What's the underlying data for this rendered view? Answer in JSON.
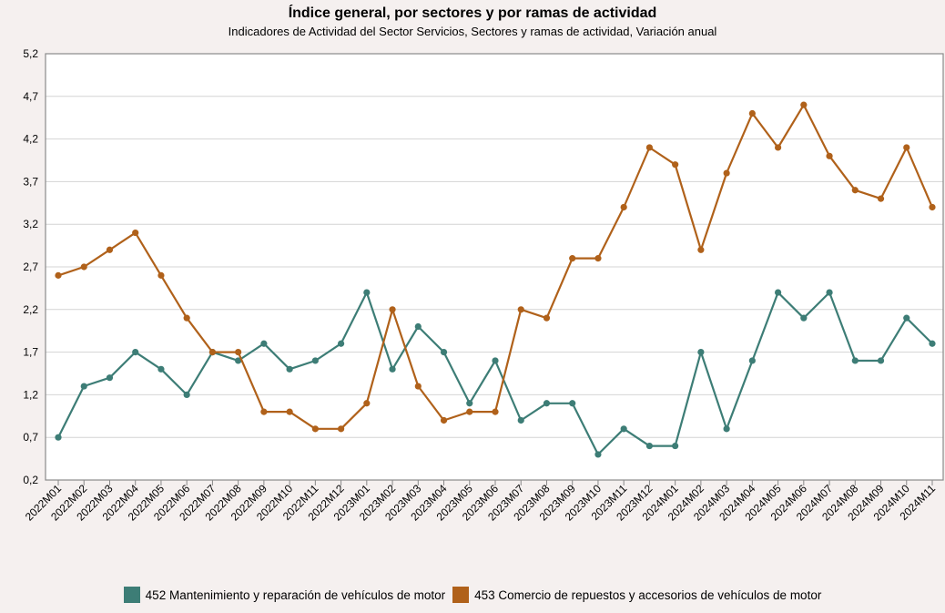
{
  "chart_data": {
    "type": "line",
    "title": "Índice general, por sectores y por ramas de actividad",
    "subtitle": "Indicadores de Actividad del Sector Servicios, Sectores y ramas de actividad, Variación anual",
    "categories": [
      "2022M01",
      "2022M02",
      "2022M03",
      "2022M04",
      "2022M05",
      "2022M06",
      "2022M07",
      "2022M08",
      "2022M09",
      "2022M10",
      "2022M11",
      "2022M12",
      "2023M01",
      "2023M02",
      "2023M03",
      "2023M04",
      "2023M05",
      "2023M06",
      "2023M07",
      "2023M08",
      "2023M09",
      "2023M10",
      "2023M11",
      "2023M12",
      "2024M01",
      "2024M02",
      "2024M03",
      "2024M04",
      "2024M05",
      "2024M06",
      "2024M07",
      "2024M08",
      "2024M09",
      "2024M10",
      "2024M11"
    ],
    "ylim": [
      0.2,
      5.2
    ],
    "yticks": [
      "0,2",
      "0,7",
      "1,2",
      "1,7",
      "2,2",
      "2,7",
      "3,2",
      "3,7",
      "4,2",
      "4,7",
      "5,2"
    ],
    "grid": true,
    "legend_position": "bottom",
    "series": [
      {
        "name": "452 Mantenimiento y reparación de vehículos de motor",
        "color": "#3d7d76",
        "values": [
          0.7,
          1.3,
          1.4,
          1.7,
          1.5,
          1.2,
          1.7,
          1.6,
          1.8,
          1.5,
          1.6,
          1.8,
          2.4,
          1.5,
          2.0,
          1.7,
          1.1,
          1.6,
          0.9,
          1.1,
          1.1,
          0.5,
          0.8,
          0.6,
          0.6,
          1.7,
          0.8,
          1.6,
          2.4,
          2.1,
          2.4,
          1.6,
          1.6,
          2.1,
          1.8
        ]
      },
      {
        "name": "453 Comercio de repuestos y accesorios de vehículos de motor",
        "color": "#b0611a",
        "values": [
          2.6,
          2.7,
          2.9,
          3.1,
          2.6,
          2.1,
          1.7,
          1.7,
          1.0,
          1.0,
          0.8,
          0.8,
          1.1,
          2.2,
          1.3,
          0.9,
          1.0,
          1.0,
          2.2,
          2.1,
          2.8,
          2.8,
          3.4,
          4.1,
          3.9,
          2.9,
          3.8,
          4.5,
          4.1,
          4.6,
          4.0,
          3.6,
          3.5,
          4.1,
          3.4
        ]
      }
    ]
  }
}
